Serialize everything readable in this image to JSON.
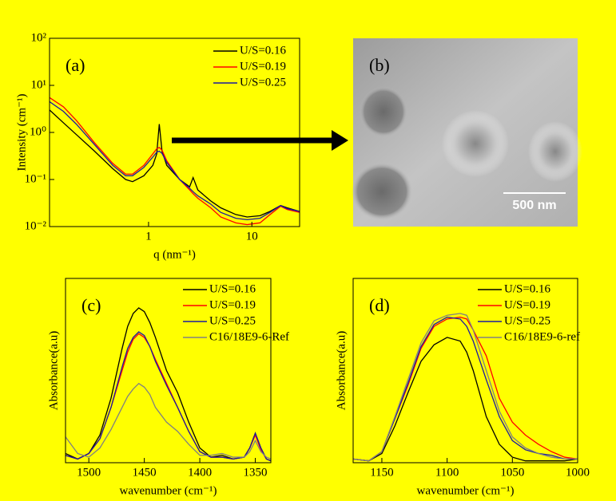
{
  "chart_data": [
    {
      "type": "line",
      "label": "(a)",
      "x_label": "q (nm⁻¹)",
      "y_label": "Intensity (cm⁻¹)",
      "xscale": "log",
      "yscale": "log",
      "xlim": [
        0.11,
        29
      ],
      "ylim": [
        0.01,
        100
      ],
      "xticks": [
        1,
        10
      ],
      "yticks": [
        {
          "value": 0.01,
          "label": "10⁻²"
        },
        {
          "value": 0.1,
          "label": "10⁻¹"
        },
        {
          "value": 1,
          "label": "10⁰"
        },
        {
          "value": 10,
          "label": "10¹"
        },
        {
          "value": 100,
          "label": "10²"
        }
      ],
      "x": [
        0.11,
        0.15,
        0.2,
        0.3,
        0.45,
        0.6,
        0.7,
        0.9,
        1.1,
        1.2,
        1.27,
        1.35,
        1.5,
        2,
        2.5,
        2.7,
        3,
        4,
        5,
        7,
        9,
        12,
        15,
        19,
        22,
        29
      ],
      "series": [
        {
          "name": "U/S=0.16",
          "color": "#000000",
          "values": [
            3.0,
            1.6,
            0.9,
            0.4,
            0.17,
            0.1,
            0.09,
            0.12,
            0.2,
            0.35,
            1.5,
            0.4,
            0.2,
            0.1,
            0.07,
            0.11,
            0.06,
            0.035,
            0.025,
            0.018,
            0.016,
            0.017,
            0.021,
            0.028,
            0.025,
            0.021
          ]
        },
        {
          "name": "U/S=0.19",
          "color": "#ff0000",
          "values": [
            5.5,
            3.5,
            1.8,
            0.6,
            0.22,
            0.13,
            0.13,
            0.2,
            0.35,
            0.45,
            0.48,
            0.42,
            0.25,
            0.1,
            0.06,
            0.05,
            0.04,
            0.025,
            0.016,
            0.012,
            0.011,
            0.012,
            0.018,
            0.027,
            0.023,
            0.02
          ]
        },
        {
          "name": "U/S=0.25",
          "color": "#1a1aa0",
          "values": [
            4.5,
            2.8,
            1.5,
            0.55,
            0.2,
            0.12,
            0.12,
            0.18,
            0.3,
            0.38,
            0.4,
            0.36,
            0.23,
            0.1,
            0.065,
            0.055,
            0.045,
            0.03,
            0.02,
            0.015,
            0.014,
            0.015,
            0.02,
            0.028,
            0.024,
            0.021
          ]
        }
      ]
    },
    {
      "type": "line",
      "label": "(c)",
      "x_label": "wavenumber (cm⁻¹)",
      "y_label": "Absorbance(a.u)",
      "xlim": [
        1521,
        1336
      ],
      "ylim": [
        0,
        1
      ],
      "xticks": [
        1500,
        1450,
        1400,
        1350
      ],
      "x": [
        1521,
        1510,
        1500,
        1490,
        1480,
        1470,
        1465,
        1460,
        1455,
        1450,
        1445,
        1440,
        1430,
        1420,
        1410,
        1400,
        1390,
        1380,
        1370,
        1360,
        1355,
        1350,
        1345,
        1340,
        1336
      ],
      "series": [
        {
          "name": "U/S=0.16",
          "color": "#000000",
          "values": [
            0.05,
            0.02,
            0.05,
            0.15,
            0.35,
            0.62,
            0.74,
            0.81,
            0.84,
            0.82,
            0.76,
            0.68,
            0.5,
            0.38,
            0.22,
            0.08,
            0.03,
            0.04,
            0.02,
            0.03,
            0.08,
            0.16,
            0.08,
            0.02,
            0.01
          ]
        },
        {
          "name": "U/S=0.19",
          "color": "#ff0000",
          "values": [
            0.04,
            0.02,
            0.05,
            0.13,
            0.3,
            0.5,
            0.6,
            0.67,
            0.7,
            0.68,
            0.63,
            0.56,
            0.43,
            0.3,
            0.17,
            0.06,
            0.03,
            0.03,
            0.02,
            0.03,
            0.08,
            0.15,
            0.07,
            0.02,
            0.01
          ]
        },
        {
          "name": "U/S=0.25",
          "color": "#1a1aa0",
          "values": [
            0.04,
            0.02,
            0.05,
            0.13,
            0.3,
            0.52,
            0.62,
            0.68,
            0.71,
            0.69,
            0.63,
            0.55,
            0.42,
            0.3,
            0.17,
            0.06,
            0.03,
            0.03,
            0.02,
            0.03,
            0.08,
            0.16,
            0.08,
            0.02,
            0.01
          ]
        },
        {
          "name": "C16/18E9-6-Ref",
          "color": "#808080",
          "values": [
            0.14,
            0.05,
            0.03,
            0.08,
            0.18,
            0.3,
            0.36,
            0.4,
            0.43,
            0.41,
            0.37,
            0.3,
            0.22,
            0.17,
            0.1,
            0.04,
            0.04,
            0.05,
            0.03,
            0.03,
            0.06,
            0.12,
            0.06,
            0.03,
            0.02
          ]
        }
      ]
    },
    {
      "type": "line",
      "label": "(d)",
      "x_label": "wavenumber (cm⁻¹)",
      "y_label": "Absorbance(a.u)",
      "xlim": [
        1172,
        1000
      ],
      "ylim": [
        0,
        1
      ],
      "xticks": [
        1150,
        1100,
        1050,
        1000
      ],
      "x": [
        1172,
        1160,
        1150,
        1140,
        1130,
        1120,
        1110,
        1100,
        1090,
        1085,
        1080,
        1070,
        1060,
        1050,
        1040,
        1030,
        1020,
        1010,
        1000
      ],
      "series": [
        {
          "name": "U/S=0.16",
          "color": "#000000",
          "values": [
            0.02,
            0.01,
            0.05,
            0.2,
            0.38,
            0.55,
            0.64,
            0.68,
            0.66,
            0.6,
            0.5,
            0.25,
            0.1,
            0.03,
            0.01,
            0.01,
            0.01,
            0.01,
            0.02
          ]
        },
        {
          "name": "U/S=0.19",
          "color": "#ff0000",
          "values": [
            0.02,
            0.01,
            0.06,
            0.24,
            0.42,
            0.62,
            0.74,
            0.78,
            0.79,
            0.78,
            0.72,
            0.58,
            0.35,
            0.22,
            0.15,
            0.1,
            0.06,
            0.03,
            0.02
          ]
        },
        {
          "name": "U/S=0.25",
          "color": "#1a1aa0",
          "values": [
            0.02,
            0.01,
            0.06,
            0.24,
            0.43,
            0.63,
            0.75,
            0.79,
            0.78,
            0.74,
            0.66,
            0.45,
            0.25,
            0.12,
            0.07,
            0.05,
            0.04,
            0.02,
            0.02
          ]
        },
        {
          "name": "C16/18E9-6-ref",
          "color": "#808080",
          "values": [
            0.02,
            0.01,
            0.06,
            0.25,
            0.45,
            0.65,
            0.77,
            0.8,
            0.81,
            0.8,
            0.72,
            0.5,
            0.28,
            0.14,
            0.08,
            0.05,
            0.03,
            0.02,
            0.02
          ]
        }
      ]
    }
  ],
  "image": {
    "label": "(b)",
    "scale_bar": "500 nm"
  }
}
